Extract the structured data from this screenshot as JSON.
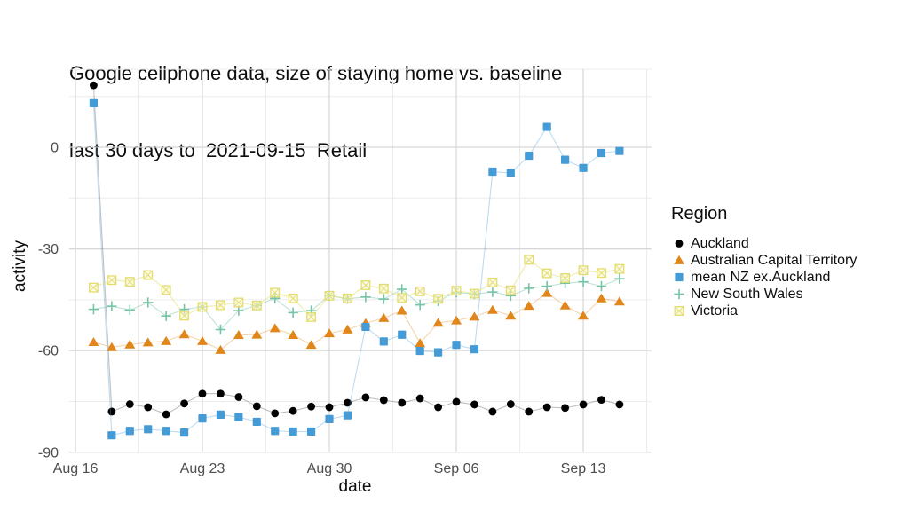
{
  "title": {
    "line1": "Google cellphone data, size of staying home vs. baseline",
    "line2": "last 30 days to  2021-09-15  Retail"
  },
  "axis": {
    "x_label": "date",
    "y_label": "activity"
  },
  "legend": {
    "title": "Region",
    "items": [
      {
        "label": "Auckland",
        "marker": "circle",
        "color": "#000000"
      },
      {
        "label": "Australian Capital Territory",
        "marker": "triangle",
        "color": "#E0861A"
      },
      {
        "label": "mean NZ ex.Auckland",
        "marker": "square",
        "color": "#459BD6"
      },
      {
        "label": "New South Wales",
        "marker": "plus",
        "color": "#76C4A5"
      },
      {
        "label": "Victoria",
        "marker": "square-cross",
        "color": "#E3DD70"
      }
    ]
  },
  "chart_data": {
    "type": "line",
    "title": "Google cellphone data, size of staying home vs. baseline",
    "subtitle": "last 30 days to  2021-09-15  Retail",
    "xlabel": "date",
    "ylabel": "activity",
    "legend_title": "Region",
    "legend_position": "right",
    "grid": true,
    "ylim": [
      -90.5,
      23
    ],
    "y_ticks": [
      0,
      -30,
      -60,
      -90
    ],
    "y_minor": [
      23,
      15,
      -15,
      -45,
      -75
    ],
    "x_tick_labels": [
      "Aug 16",
      "Aug 23",
      "Aug 30",
      "Sep 06",
      "Sep 13"
    ],
    "x_tick_days": [
      0,
      7,
      14,
      21,
      28
    ],
    "x_minor_days": [
      3.5,
      10.5,
      17.5,
      24.5,
      31.5
    ],
    "dates": [
      "2021-08-17",
      "2021-08-18",
      "2021-08-19",
      "2021-08-20",
      "2021-08-21",
      "2021-08-22",
      "2021-08-23",
      "2021-08-24",
      "2021-08-25",
      "2021-08-26",
      "2021-08-27",
      "2021-08-28",
      "2021-08-29",
      "2021-08-30",
      "2021-08-31",
      "2021-09-01",
      "2021-09-02",
      "2021-09-03",
      "2021-09-04",
      "2021-09-05",
      "2021-09-06",
      "2021-09-07",
      "2021-09-08",
      "2021-09-09",
      "2021-09-10",
      "2021-09-11",
      "2021-09-12",
      "2021-09-13",
      "2021-09-14",
      "2021-09-15"
    ],
    "series": [
      {
        "name": "Auckland",
        "marker": "circle",
        "color": "#000000",
        "line_color": "rgba(0,0,0,0.25)",
        "values": [
          18.3,
          -78.0,
          -75.8,
          -76.7,
          -78.8,
          -75.6,
          -72.7,
          -72.7,
          -73.7,
          -76.4,
          -78.5,
          -77.8,
          -76.5,
          -76.7,
          -75.4,
          -73.8,
          -74.6,
          -75.4,
          -74.1,
          -76.7,
          -75.1,
          -75.9,
          -78.0,
          -75.8,
          -78.0,
          -76.7,
          -76.9,
          -75.9,
          -74.5,
          -75.9
        ]
      },
      {
        "name": "Australian Capital Territory",
        "marker": "triangle",
        "color": "#E0861A",
        "line_color": "rgba(224,134,26,0.35)",
        "values": [
          -57.5,
          -59.0,
          -58.2,
          -57.6,
          -57.2,
          -55.2,
          -57.2,
          -59.8,
          -55.4,
          -55.3,
          -53.4,
          -55.4,
          -58.3,
          -54.9,
          -53.8,
          -51.9,
          -50.4,
          -48.2,
          -57.8,
          -51.8,
          -51.1,
          -50.0,
          -48.0,
          -49.7,
          -46.8,
          -43.0,
          -46.7,
          -49.7,
          -44.6,
          -45.5
        ]
      },
      {
        "name": "mean NZ ex.Auckland",
        "marker": "square",
        "color": "#459BD6",
        "line_color": "rgba(69,155,214,0.35)",
        "values": [
          13.0,
          -85.0,
          -83.7,
          -83.2,
          -83.7,
          -84.2,
          -80.0,
          -78.9,
          -79.6,
          -81.0,
          -83.7,
          -83.9,
          -83.9,
          -80.2,
          -79.1,
          -53.0,
          -57.3,
          -55.3,
          -60.1,
          -60.5,
          -58.3,
          -59.6,
          -7.2,
          -7.6,
          -2.5,
          6.0,
          -3.7,
          -6.1,
          -1.7,
          -1.1
        ]
      },
      {
        "name": "New South Wales",
        "marker": "plus",
        "color": "#76C4A5",
        "line_color": "rgba(118,196,165,0.45)",
        "values": [
          -47.8,
          -46.9,
          -48.0,
          -45.8,
          -49.8,
          -47.8,
          -47.1,
          -53.8,
          -48.2,
          -46.7,
          -44.6,
          -48.8,
          -48.2,
          -43.8,
          -44.7,
          -44.2,
          -44.8,
          -41.9,
          -46.5,
          -45.4,
          -42.8,
          -43.3,
          -42.7,
          -43.8,
          -41.6,
          -41.0,
          -40.1,
          -39.7,
          -41.0,
          -38.8
        ]
      },
      {
        "name": "Victoria",
        "marker": "square-cross",
        "color": "#E3DD70",
        "line_color": "rgba(227,221,112,0.55)",
        "values": [
          -41.4,
          -39.2,
          -39.7,
          -37.7,
          -42.1,
          -49.7,
          -47.1,
          -46.6,
          -45.8,
          -46.7,
          -42.9,
          -44.6,
          -50.1,
          -43.8,
          -44.6,
          -40.7,
          -41.7,
          -44.4,
          -42.5,
          -44.7,
          -42.3,
          -43.2,
          -39.9,
          -42.2,
          -33.2,
          -37.2,
          -38.6,
          -36.3,
          -37.1,
          -35.9
        ]
      }
    ]
  }
}
